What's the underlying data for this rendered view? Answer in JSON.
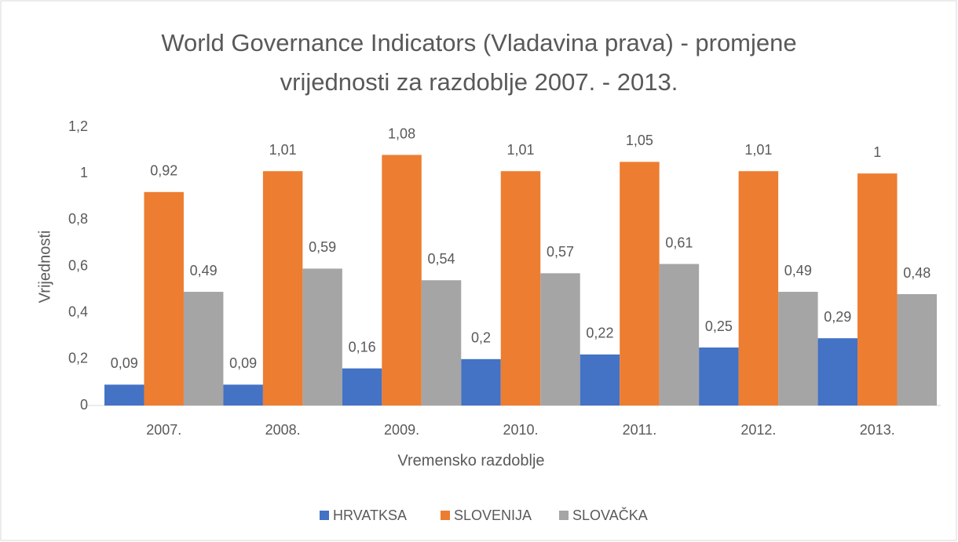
{
  "chart_data": {
    "type": "bar",
    "title": "World Governance Indicators (Vladavina prava) - promjene vrijednosti za razdoblje 2007. - 2013.",
    "x_label": "Vremensko razdoblje",
    "y_label": "Vrijednosti",
    "categories": [
      "2007.",
      "2008.",
      "2009.",
      "2010.",
      "2011.",
      "2012.",
      "2013."
    ],
    "series": [
      {
        "name": "HRVATKSA",
        "color": "#4472c4",
        "values": [
          0.09,
          0.09,
          0.16,
          0.2,
          0.22,
          0.25,
          0.29
        ],
        "value_labels": [
          "0,09",
          "0,09",
          "0,16",
          "0,2",
          "0,22",
          "0,25",
          "0,29"
        ]
      },
      {
        "name": "SLOVENIJA",
        "color": "#ed7d31",
        "values": [
          0.92,
          1.01,
          1.08,
          1.01,
          1.05,
          1.01,
          1
        ],
        "value_labels": [
          "0,92",
          "1,01",
          "1,08",
          "1,01",
          "1,05",
          "1,01",
          "1"
        ]
      },
      {
        "name": "SLOVAČKA",
        "color": "#a5a5a5",
        "values": [
          0.49,
          0.59,
          0.54,
          0.57,
          0.61,
          0.49,
          0.48
        ],
        "value_labels": [
          "0,49",
          "0,59",
          "0,54",
          "0,57",
          "0,61",
          "0,49",
          "0,48"
        ]
      }
    ],
    "ylim": [
      0,
      1.2
    ],
    "yticks": [
      0,
      {
        "value": 0.2,
        "label": "0,2"
      },
      {
        "value": 0.4,
        "label": "0,4"
      },
      {
        "value": 0.6,
        "label": "0,6"
      },
      {
        "value": 0.8,
        "label": "0,8"
      },
      1,
      {
        "value": 1.2,
        "label": "1,2"
      }
    ],
    "grid": false,
    "legend": "bottom"
  }
}
